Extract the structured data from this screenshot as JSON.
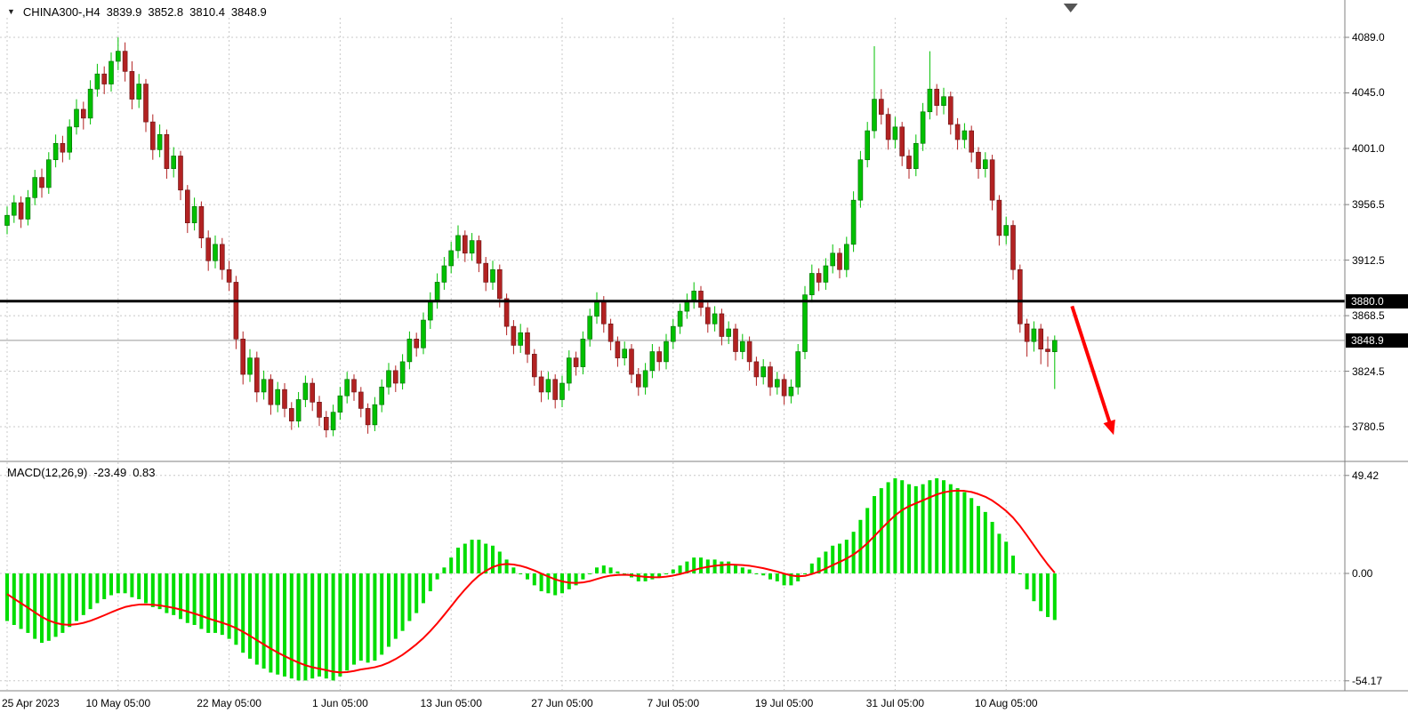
{
  "quote_bar": {
    "symbol_period": "CHINA300-,H4",
    "open": "3839.9",
    "high": "3852.8",
    "low": "3810.4",
    "close": "3848.9"
  },
  "indicator": {
    "label": "MACD(12,26,9)",
    "macd_value": "-23.49",
    "signal_value": "0.83"
  },
  "price_axis": {
    "hline_tag": "3880.0",
    "bid_tag": "3848.9"
  },
  "time_axis": {
    "labels": [
      {
        "text": "25 Apr 2023",
        "bar": 0
      },
      {
        "text": "10 May 05:00",
        "bar": 16
      },
      {
        "text": "22 May 05:00",
        "bar": 32
      },
      {
        "text": "1 Jun 05:00",
        "bar": 48
      },
      {
        "text": "13 Jun 05:00",
        "bar": 64
      },
      {
        "text": "27 Jun 05:00",
        "bar": 80
      },
      {
        "text": "7 Jul 05:00",
        "bar": 96
      },
      {
        "text": "19 Jul 05:00",
        "bar": 112
      },
      {
        "text": "31 Jul 05:00",
        "bar": 128
      },
      {
        "text": "10 Aug 05:00",
        "bar": 144
      }
    ]
  },
  "colors": {
    "background": "#FFFFFF",
    "grid": "#C8C8C8",
    "bull": "#00C000",
    "bull_border": "#006600",
    "bear": "#B22222",
    "bear_border": "#661111",
    "macd_hist": "#00DD00",
    "macd_signal": "#FF0000",
    "hline": "#000000",
    "arrow": "#FF0000",
    "tag_bg": "#000000",
    "tag_fg": "#FFFFFF",
    "separator": "#808080",
    "bid_line": "#999999"
  },
  "chart_data": {
    "type": "candlestick",
    "symbol": "CHINA300-",
    "timeframe": "H4",
    "title": "CHINA300-,H4 3839.9 3852.8 3810.4 3848.9",
    "price_axis_ticks": [
      4089.0,
      4045.0,
      4001.0,
      3956.5,
      3912.5,
      3868.5,
      3824.5,
      3780.5
    ],
    "macd_axis_ticks": [
      49.42,
      0.0,
      -54.17
    ],
    "hline": {
      "price": 3880.0,
      "color": "#000000",
      "width": 3
    },
    "bid_line": {
      "price": 3848.9
    },
    "current_price": 3848.9,
    "trend_arrow": {
      "from_bar": 153.5,
      "from_price": 3876,
      "to_bar": 159.5,
      "to_price": 3774,
      "color": "#FF0000",
      "width": 4
    },
    "shift_marker_bar": 153.3,
    "candles": [
      [
        3940,
        3955,
        3933,
        3948
      ],
      [
        3948,
        3964,
        3942,
        3958
      ],
      [
        3958,
        3963,
        3938,
        3945
      ],
      [
        3945,
        3968,
        3940,
        3962
      ],
      [
        3962,
        3984,
        3956,
        3978
      ],
      [
        3978,
        3985,
        3962,
        3970
      ],
      [
        3970,
        3998,
        3965,
        3992
      ],
      [
        3992,
        4012,
        3986,
        4005
      ],
      [
        4005,
        4011,
        3990,
        3998
      ],
      [
        3998,
        4024,
        3992,
        4018
      ],
      [
        4018,
        4040,
        4012,
        4032
      ],
      [
        4032,
        4038,
        4016,
        4025
      ],
      [
        4025,
        4055,
        4020,
        4048
      ],
      [
        4048,
        4068,
        4042,
        4060
      ],
      [
        4060,
        4066,
        4044,
        4052
      ],
      [
        4052,
        4077,
        4046,
        4070
      ],
      [
        4070,
        4089,
        4063,
        4078
      ],
      [
        4078,
        4085,
        4054,
        4062
      ],
      [
        4062,
        4070,
        4032,
        4040
      ],
      [
        4040,
        4060,
        4033,
        4052
      ],
      [
        4052,
        4056,
        4014,
        4022
      ],
      [
        4022,
        4028,
        3992,
        4000
      ],
      [
        4000,
        4020,
        3994,
        4012
      ],
      [
        4012,
        4016,
        3977,
        3985
      ],
      [
        3985,
        4002,
        3978,
        3995
      ],
      [
        3995,
        3999,
        3960,
        3968
      ],
      [
        3968,
        3972,
        3934,
        3942
      ],
      [
        3942,
        3962,
        3936,
        3955
      ],
      [
        3955,
        3959,
        3922,
        3930
      ],
      [
        3930,
        3936,
        3904,
        3912
      ],
      [
        3912,
        3932,
        3906,
        3925
      ],
      [
        3925,
        3930,
        3897,
        3905
      ],
      [
        3905,
        3912,
        3888,
        3895
      ],
      [
        3895,
        3900,
        3842,
        3850
      ],
      [
        3850,
        3856,
        3814,
        3822
      ],
      [
        3822,
        3842,
        3816,
        3835
      ],
      [
        3835,
        3840,
        3800,
        3808
      ],
      [
        3808,
        3825,
        3802,
        3818
      ],
      [
        3818,
        3822,
        3790,
        3798
      ],
      [
        3798,
        3816,
        3792,
        3810
      ],
      [
        3810,
        3815,
        3788,
        3795
      ],
      [
        3795,
        3800,
        3778,
        3785
      ],
      [
        3785,
        3808,
        3780,
        3802
      ],
      [
        3802,
        3821,
        3796,
        3815
      ],
      [
        3815,
        3819,
        3793,
        3800
      ],
      [
        3800,
        3805,
        3781,
        3788
      ],
      [
        3788,
        3793,
        3772,
        3778
      ],
      [
        3778,
        3798,
        3773,
        3792
      ],
      [
        3792,
        3812,
        3786,
        3805
      ],
      [
        3805,
        3824,
        3799,
        3818
      ],
      [
        3818,
        3822,
        3801,
        3808
      ],
      [
        3808,
        3812,
        3788,
        3795
      ],
      [
        3795,
        3799,
        3775,
        3782
      ],
      [
        3782,
        3804,
        3777,
        3798
      ],
      [
        3798,
        3818,
        3792,
        3812
      ],
      [
        3812,
        3831,
        3806,
        3825
      ],
      [
        3825,
        3829,
        3808,
        3815
      ],
      [
        3815,
        3838,
        3810,
        3832
      ],
      [
        3832,
        3856,
        3826,
        3850
      ],
      [
        3850,
        3855,
        3836,
        3843
      ],
      [
        3843,
        3871,
        3838,
        3865
      ],
      [
        3865,
        3887,
        3858,
        3880
      ],
      [
        3880,
        3902,
        3874,
        3895
      ],
      [
        3895,
        3915,
        3889,
        3908
      ],
      [
        3908,
        3927,
        3902,
        3920
      ],
      [
        3920,
        3940,
        3914,
        3932
      ],
      [
        3932,
        3936,
        3911,
        3918
      ],
      [
        3918,
        3934,
        3912,
        3928
      ],
      [
        3928,
        3932,
        3903,
        3910
      ],
      [
        3910,
        3915,
        3888,
        3895
      ],
      [
        3895,
        3912,
        3889,
        3905
      ],
      [
        3905,
        3909,
        3875,
        3882
      ],
      [
        3882,
        3886,
        3853,
        3860
      ],
      [
        3860,
        3865,
        3838,
        3845
      ],
      [
        3845,
        3862,
        3839,
        3855
      ],
      [
        3855,
        3859,
        3831,
        3838
      ],
      [
        3838,
        3842,
        3813,
        3820
      ],
      [
        3820,
        3825,
        3800,
        3808
      ],
      [
        3808,
        3824,
        3802,
        3818
      ],
      [
        3818,
        3822,
        3795,
        3802
      ],
      [
        3802,
        3821,
        3796,
        3815
      ],
      [
        3815,
        3841,
        3809,
        3835
      ],
      [
        3835,
        3840,
        3821,
        3828
      ],
      [
        3828,
        3856,
        3822,
        3850
      ],
      [
        3850,
        3874,
        3844,
        3868
      ],
      [
        3868,
        3887,
        3862,
        3880
      ],
      [
        3880,
        3884,
        3855,
        3862
      ],
      [
        3862,
        3866,
        3841,
        3848
      ],
      [
        3848,
        3852,
        3828,
        3835
      ],
      [
        3835,
        3848,
        3829,
        3842
      ],
      [
        3842,
        3846,
        3815,
        3822
      ],
      [
        3822,
        3827,
        3805,
        3812
      ],
      [
        3812,
        3831,
        3806,
        3825
      ],
      [
        3825,
        3846,
        3819,
        3840
      ],
      [
        3840,
        3844,
        3825,
        3832
      ],
      [
        3832,
        3854,
        3826,
        3848
      ],
      [
        3848,
        3866,
        3842,
        3860
      ],
      [
        3860,
        3878,
        3854,
        3872
      ],
      [
        3872,
        3886,
        3866,
        3880
      ],
      [
        3880,
        3895,
        3874,
        3888
      ],
      [
        3888,
        3892,
        3868,
        3875
      ],
      [
        3875,
        3879,
        3855,
        3862
      ],
      [
        3862,
        3876,
        3856,
        3870
      ],
      [
        3870,
        3874,
        3845,
        3852
      ],
      [
        3852,
        3864,
        3846,
        3858
      ],
      [
        3858,
        3862,
        3833,
        3840
      ],
      [
        3840,
        3854,
        3834,
        3848
      ],
      [
        3848,
        3852,
        3825,
        3832
      ],
      [
        3832,
        3836,
        3813,
        3820
      ],
      [
        3820,
        3834,
        3814,
        3828
      ],
      [
        3828,
        3832,
        3805,
        3812
      ],
      [
        3812,
        3824,
        3806,
        3818
      ],
      [
        3818,
        3822,
        3798,
        3805
      ],
      [
        3805,
        3818,
        3799,
        3812
      ],
      [
        3812,
        3846,
        3806,
        3840
      ],
      [
        3840,
        3892,
        3834,
        3885
      ],
      [
        3885,
        3909,
        3879,
        3902
      ],
      [
        3902,
        3906,
        3888,
        3895
      ],
      [
        3895,
        3914,
        3889,
        3908
      ],
      [
        3908,
        3925,
        3902,
        3918
      ],
      [
        3918,
        3922,
        3898,
        3905
      ],
      [
        3905,
        3931,
        3899,
        3925
      ],
      [
        3925,
        3967,
        3919,
        3960
      ],
      [
        3960,
        3999,
        3954,
        3992
      ],
      [
        3992,
        4022,
        3986,
        4015
      ],
      [
        4015,
        4082,
        4009,
        4040
      ],
      [
        4040,
        4048,
        4020,
        4028
      ],
      [
        4028,
        4033,
        4000,
        4008
      ],
      [
        4008,
        4026,
        4001,
        4018
      ],
      [
        4018,
        4022,
        3987,
        3995
      ],
      [
        3995,
        4000,
        3977,
        3985
      ],
      [
        3985,
        4012,
        3979,
        4005
      ],
      [
        4005,
        4037,
        3999,
        4030
      ],
      [
        4030,
        4078,
        4024,
        4048
      ],
      [
        4048,
        4052,
        4027,
        4035
      ],
      [
        4035,
        4049,
        4028,
        4042
      ],
      [
        4042,
        4046,
        4012,
        4020
      ],
      [
        4020,
        4025,
        4000,
        4008
      ],
      [
        4008,
        4021,
        4001,
        4015
      ],
      [
        4015,
        4019,
        3990,
        3998
      ],
      [
        3998,
        4002,
        3977,
        3985
      ],
      [
        3985,
        3998,
        3978,
        3992
      ],
      [
        3992,
        3996,
        3952,
        3960
      ],
      [
        3960,
        3964,
        3924,
        3932
      ],
      [
        3932,
        3947,
        3925,
        3940
      ],
      [
        3940,
        3944,
        3897,
        3905
      ],
      [
        3905,
        3909,
        3855,
        3862
      ],
      [
        3862,
        3866,
        3836,
        3848
      ],
      [
        3848,
        3864,
        3840,
        3858
      ],
      [
        3858,
        3862,
        3830,
        3842
      ],
      [
        3842,
        3852,
        3828,
        3840
      ],
      [
        3839.9,
        3852.8,
        3810.4,
        3848.9
      ]
    ],
    "macd": {
      "params": "12,26,9",
      "last_macd": -23.49,
      "last_signal": 0.83,
      "signal_ema_period": 9,
      "signal_seed": -8,
      "histogram": [
        -24,
        -26,
        -28,
        -30,
        -33,
        -35,
        -34,
        -32,
        -30,
        -27,
        -24,
        -21,
        -18,
        -15,
        -13,
        -11,
        -10,
        -10,
        -12,
        -13,
        -15,
        -17,
        -18,
        -20,
        -21,
        -23,
        -25,
        -26,
        -28,
        -30,
        -30,
        -31,
        -33,
        -36,
        -40,
        -43,
        -46,
        -48,
        -50,
        -51,
        -52,
        -53,
        -54,
        -54,
        -53,
        -52,
        -53,
        -54,
        -52,
        -49,
        -46,
        -44,
        -45,
        -44,
        -41,
        -37,
        -33,
        -29,
        -24,
        -20,
        -15,
        -9,
        -3,
        3,
        8,
        13,
        15,
        17,
        17,
        15,
        14,
        11,
        7,
        3,
        0,
        -3,
        -6,
        -9,
        -10,
        -11,
        -10,
        -8,
        -6,
        -3,
        0,
        3,
        4,
        3,
        1,
        0,
        -2,
        -4,
        -4,
        -3,
        -2,
        0,
        2,
        4,
        6,
        8,
        8,
        7,
        7,
        6,
        6,
        4,
        3,
        2,
        0,
        -1,
        -3,
        -4,
        -6,
        -6,
        -4,
        0,
        5,
        8,
        11,
        14,
        15,
        17,
        21,
        27,
        33,
        39,
        43,
        46,
        48,
        47,
        45,
        44,
        45,
        47,
        48,
        47,
        45,
        43,
        41,
        38,
        34,
        31,
        26,
        20,
        16,
        9,
        0,
        -8,
        -14,
        -19,
        -22,
        -23.49
      ]
    }
  }
}
